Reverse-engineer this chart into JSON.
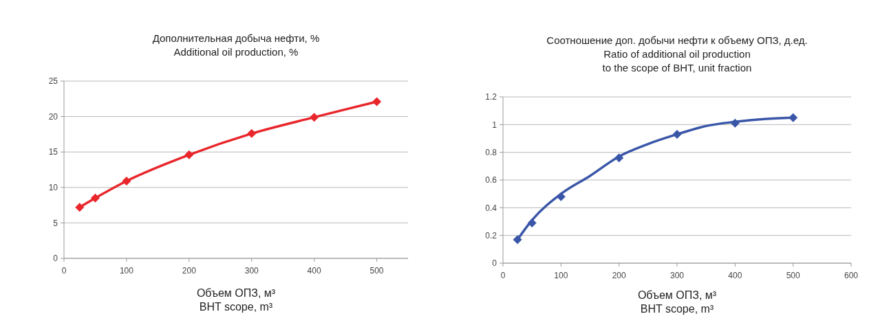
{
  "chart_data": [
    {
      "type": "line",
      "title": "Дополнительная добыча нефти, %\nAdditional oil production, %",
      "xlabel": "Объем ОПЗ, м³\nBHT scope, m³",
      "xlim": [
        0,
        550
      ],
      "xticks": [
        0,
        100,
        200,
        300,
        400,
        500
      ],
      "ylim": [
        0,
        25
      ],
      "yticks": [
        0,
        5,
        10,
        15,
        20,
        25
      ],
      "grid": "y",
      "series": [
        {
          "color": "#e8262b",
          "marker": "diamond",
          "x": [
            25,
            50,
            100,
            200,
            300,
            400,
            500
          ],
          "values": [
            7.2,
            8.5,
            10.9,
            14.6,
            17.6,
            19.9,
            22.1
          ]
        }
      ]
    },
    {
      "type": "scatter",
      "title": "Соотношение доп. добычи нефти к объему ОПЗ, д.ед.\nRatio of additional oil production\nto the scope of BHT, unit fraction",
      "xlabel": "Объем ОПЗ, м³\nBHT scope, m³",
      "xlim": [
        0,
        600
      ],
      "xticks": [
        0,
        100,
        200,
        300,
        400,
        500,
        600
      ],
      "ylim": [
        0,
        1.2
      ],
      "yticks": [
        0,
        0.2,
        0.4,
        0.6,
        0.8,
        1,
        1.2
      ],
      "grid": "y",
      "series": [
        {
          "color": "#3a56a8",
          "marker": "diamond",
          "x": [
            25,
            50,
            100,
            200,
            300,
            400,
            500
          ],
          "values": [
            0.17,
            0.29,
            0.48,
            0.76,
            0.93,
            1.01,
            1.05
          ]
        },
        {
          "type": "line",
          "color": "#3a56a8",
          "marker": "none",
          "x": [
            25,
            50,
            100,
            150,
            200,
            250,
            300,
            350,
            400,
            450,
            500
          ],
          "values": [
            0.17,
            0.31,
            0.5,
            0.63,
            0.77,
            0.86,
            0.93,
            0.99,
            1.02,
            1.04,
            1.05
          ]
        }
      ]
    }
  ]
}
